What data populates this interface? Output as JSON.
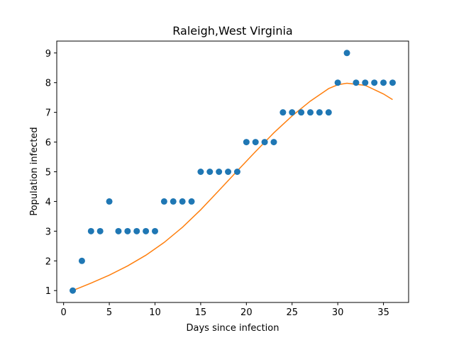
{
  "chart_data": {
    "type": "scatter",
    "title": "Raleigh,West Virginia",
    "xlabel": "Days since infection",
    "ylabel": "Population infected",
    "xlim": [
      -0.75,
      37.75
    ],
    "ylim": [
      0.6,
      9.4
    ],
    "xticks": [
      0,
      5,
      10,
      15,
      20,
      25,
      30,
      35
    ],
    "yticks": [
      1,
      2,
      3,
      4,
      5,
      6,
      7,
      8,
      9
    ],
    "grid": false,
    "series": [
      {
        "kind": "scatter",
        "color": "#1f77b4",
        "x": [
          1,
          2,
          3,
          4,
          5,
          6,
          7,
          8,
          9,
          10,
          11,
          12,
          13,
          14,
          15,
          16,
          17,
          18,
          19,
          20,
          21,
          22,
          23,
          24,
          25,
          26,
          27,
          28,
          29,
          30,
          31,
          32,
          33,
          34,
          35,
          36
        ],
        "y": [
          1,
          2,
          3,
          3,
          4,
          3,
          3,
          3,
          3,
          3,
          4,
          4,
          4,
          4,
          5,
          5,
          5,
          5,
          5,
          6,
          6,
          6,
          6,
          7,
          7,
          7,
          7,
          7,
          7,
          8,
          9,
          8,
          8,
          8,
          8,
          8
        ]
      },
      {
        "kind": "line",
        "color": "#ff7f0e",
        "x": [
          1,
          3,
          5,
          7,
          9,
          11,
          13,
          15,
          17,
          19,
          21,
          23,
          25,
          27,
          29,
          30,
          31,
          33,
          35,
          36
        ],
        "y": [
          1.0,
          1.25,
          1.52,
          1.83,
          2.19,
          2.62,
          3.13,
          3.72,
          4.37,
          5.03,
          5.68,
          6.31,
          6.88,
          7.38,
          7.8,
          7.93,
          7.98,
          7.91,
          7.62,
          7.43
        ]
      }
    ]
  }
}
